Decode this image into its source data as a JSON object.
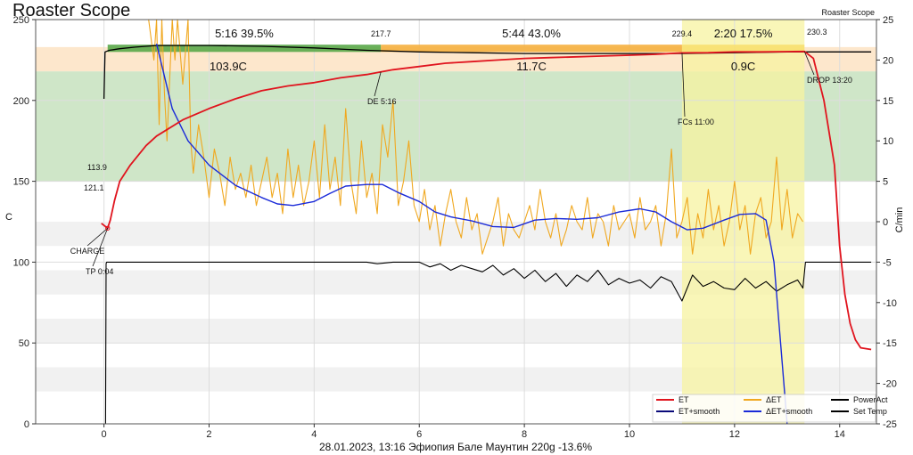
{
  "chart_data": {
    "type": "line",
    "title": "Roaster Scope",
    "watermark": "Roaster Scope",
    "subtitle": "28.01.2023, 13:16 Эфиопия Бале Маунтин   220g   -13.6%",
    "ylabel_left": "C",
    "ylabel_right": "C/min",
    "xlim": [
      -1.3,
      14.7
    ],
    "ylim_left": [
      0,
      250
    ],
    "ylim_right": [
      -25,
      25
    ],
    "xticks": [
      0,
      2,
      4,
      6,
      8,
      10,
      12,
      14
    ],
    "yticks_left": [
      0,
      50,
      100,
      150,
      200,
      250
    ],
    "yticks_right": [
      -25,
      -20,
      -15,
      -10,
      -5,
      0,
      5,
      10,
      15,
      20,
      25
    ],
    "grid": true,
    "legend_position": "bottom-right",
    "colors": {
      "et": "#e0141e",
      "et_smooth": "#0a0a7a",
      "det": "#f0a820",
      "det_smooth": "#1a2ad8",
      "power": "#000000",
      "settemp": "#000000",
      "phase_dry": "#5aa84a",
      "phase_maillard": "#f5b040",
      "phase_dev": "#f7e070",
      "band_green": "#cfe6c8",
      "band_orange": "#fde7cc",
      "dev_zone": "#f7f3a0"
    },
    "phases": [
      {
        "label": "5:16  39.5%",
        "delta": "103.9C",
        "start": 0.07,
        "end": 5.27
      },
      {
        "label": "5:44  43.0%",
        "delta": "11.7C",
        "start": 5.27,
        "end": 11.0
      },
      {
        "label": "2:20  17.5%",
        "delta": "0.9C",
        "start": 11.0,
        "end": 13.33
      }
    ],
    "phase_temps": [
      "217.7",
      "229.4",
      "230.3"
    ],
    "annotations": [
      {
        "label": "CHARGE",
        "x": 0.07,
        "y": 122
      },
      {
        "label": "TP 0:04",
        "x": 0.07,
        "y": 121
      },
      {
        "label": "DE 5:16",
        "x": 5.27,
        "y": 217.7
      },
      {
        "label": "FCs 11:00",
        "x": 11.0,
        "y": 229.4
      },
      {
        "label": "DROP 13:20",
        "x": 13.33,
        "y": 230.3
      },
      {
        "label": "113.9",
        "x": 0.25,
        "y": 158
      },
      {
        "label": "121.1",
        "x": 0.15,
        "y": 144
      }
    ],
    "legend": [
      {
        "name": "ET",
        "key": "et"
      },
      {
        "name": "ΔET",
        "key": "det"
      },
      {
        "name": "PowerAct",
        "key": "power"
      },
      {
        "name": "ET+smooth",
        "key": "et_smooth"
      },
      {
        "name": "ΔET+smooth",
        "key": "det_smooth"
      },
      {
        "name": "Set Temp",
        "key": "settemp"
      }
    ],
    "series": [
      {
        "name": "ET",
        "axis": "left",
        "x": [
          -0.05,
          0.07,
          0.12,
          0.2,
          0.3,
          0.5,
          0.8,
          1.0,
          1.5,
          2.0,
          2.5,
          3.0,
          3.5,
          4.0,
          4.5,
          5.0,
          5.27,
          5.5,
          6.0,
          6.5,
          7.0,
          7.5,
          8.0,
          8.5,
          9.0,
          9.5,
          10.0,
          10.5,
          11.0,
          11.5,
          12.0,
          12.5,
          13.0,
          13.33,
          13.5,
          13.7,
          13.9,
          14.0,
          14.1,
          14.2,
          14.3,
          14.4,
          14.6
        ],
        "y": [
          124,
          121,
          126,
          138,
          150,
          160,
          172,
          178,
          188,
          195,
          201,
          206,
          209,
          211,
          214,
          216,
          217.7,
          219,
          221,
          223,
          224,
          225,
          226,
          226.5,
          227,
          227.5,
          228,
          228.5,
          229.4,
          229.5,
          230,
          230,
          230.2,
          230.3,
          226,
          200,
          160,
          110,
          80,
          62,
          52,
          47,
          46
        ]
      },
      {
        "name": "ET+smooth",
        "axis": "left",
        "x": [
          -0.05,
          0.07,
          0.12,
          0.2,
          0.3,
          0.5,
          0.8,
          1.0,
          1.5,
          2.0,
          2.5,
          3.0,
          3.5,
          4.0,
          4.5,
          5.0,
          5.27,
          5.5,
          6.0,
          6.5,
          7.0,
          7.5,
          8.0,
          8.5,
          9.0,
          9.5,
          10.0,
          10.5,
          11.0,
          11.5,
          12.0,
          12.5,
          13.0,
          13.33
        ],
        "y": [
          124,
          121,
          126,
          138,
          150,
          160,
          172,
          178,
          188,
          195,
          201,
          206,
          209,
          211,
          214,
          216,
          217.7,
          219,
          221,
          223,
          224,
          225,
          226,
          226.5,
          227,
          227.5,
          228,
          228.5,
          229.4,
          229.5,
          230,
          230,
          230.2,
          230.3
        ]
      },
      {
        "name": "ΔET+smooth",
        "axis": "right",
        "x": [
          1.0,
          1.3,
          1.6,
          2.0,
          2.5,
          3.0,
          3.3,
          3.6,
          4.0,
          4.3,
          4.6,
          5.0,
          5.3,
          5.6,
          6.0,
          6.3,
          6.6,
          7.0,
          7.4,
          7.8,
          8.2,
          8.6,
          9.0,
          9.4,
          9.8,
          10.2,
          10.5,
          10.8,
          11.1,
          11.4,
          11.8,
          12.1,
          12.4,
          12.6,
          12.75,
          12.85,
          12.95,
          13.0
        ],
        "y": [
          22,
          14,
          10,
          7,
          4.5,
          3,
          2.2,
          2,
          2.5,
          3.5,
          4.4,
          4.6,
          4.6,
          3.6,
          2.5,
          1.2,
          0.6,
          0.1,
          -0.6,
          -0.7,
          0.2,
          0.4,
          0.3,
          0.5,
          1.2,
          1.6,
          1.2,
          0,
          -1,
          -0.8,
          0.2,
          0.9,
          1,
          0.2,
          -5,
          -13,
          -21,
          -25
        ]
      },
      {
        "name": "ΔET",
        "axis": "right",
        "x": [
          0.85,
          0.95,
          1.0,
          1.05,
          1.1,
          1.15,
          1.2,
          1.3,
          1.35,
          1.4,
          1.5,
          1.6,
          1.65,
          1.7,
          1.8,
          1.9,
          2.0,
          2.1,
          2.2,
          2.3,
          2.4,
          2.5,
          2.6,
          2.7,
          2.8,
          2.9,
          3.0,
          3.1,
          3.2,
          3.3,
          3.4,
          3.5,
          3.6,
          3.7,
          3.8,
          3.9,
          4.0,
          4.1,
          4.2,
          4.3,
          4.4,
          4.5,
          4.6,
          4.7,
          4.8,
          4.9,
          5.0,
          5.1,
          5.2,
          5.3,
          5.4,
          5.5,
          5.6,
          5.7,
          5.8,
          5.9,
          6.0,
          6.1,
          6.2,
          6.3,
          6.4,
          6.5,
          6.6,
          6.7,
          6.8,
          6.9,
          7.0,
          7.1,
          7.2,
          7.3,
          7.4,
          7.5,
          7.6,
          7.7,
          7.8,
          7.9,
          8.0,
          8.1,
          8.2,
          8.3,
          8.4,
          8.5,
          8.6,
          8.7,
          8.8,
          8.9,
          9.0,
          9.1,
          9.2,
          9.3,
          9.4,
          9.5,
          9.6,
          9.7,
          9.8,
          9.9,
          10.0,
          10.1,
          10.2,
          10.3,
          10.4,
          10.5,
          10.6,
          10.7,
          10.8,
          10.9,
          11.0,
          11.1,
          11.2,
          11.3,
          11.4,
          11.5,
          11.6,
          11.7,
          11.8,
          11.9,
          12.0,
          12.1,
          12.2,
          12.3,
          12.4,
          12.5,
          12.6,
          12.7,
          12.8,
          12.9,
          13.0,
          13.1,
          13.2,
          13.3
        ],
        "y": [
          25,
          20,
          25,
          12,
          25,
          16,
          10,
          25,
          20,
          25,
          17,
          25,
          10,
          6,
          12,
          8,
          3,
          9,
          6,
          2,
          8,
          4,
          6,
          3,
          7,
          2,
          5,
          8,
          3,
          6,
          1,
          9,
          3,
          7,
          2,
          5,
          10,
          3,
          12,
          4,
          8,
          2,
          14,
          5,
          1,
          10,
          3,
          6,
          1,
          12,
          8,
          15,
          2,
          5,
          10,
          2,
          0,
          4,
          -1,
          2,
          -3,
          1,
          4,
          0,
          -2,
          3,
          -1,
          1,
          -4,
          -2,
          0,
          3,
          -3,
          1,
          -1,
          -2,
          0,
          2,
          -1,
          4,
          0,
          -2,
          1,
          -3,
          -1,
          2,
          0,
          -1,
          3,
          -2,
          1,
          0,
          -3,
          2,
          -1,
          0,
          1,
          -2,
          3,
          -1,
          0,
          2,
          -3,
          1,
          9,
          -2,
          0,
          3,
          -4,
          1,
          -2,
          4,
          -1,
          2,
          -3,
          0,
          5,
          -1,
          2,
          -4,
          1,
          3,
          -2,
          0,
          8,
          -1,
          4,
          -2,
          1,
          0
        ]
      },
      {
        "name": "PowerAct",
        "axis": "left",
        "x": [
          0.0,
          0.03,
          0.04,
          0.05,
          0.5,
          1.0,
          2.0,
          3.0,
          4.0,
          5.0,
          5.2,
          5.5,
          6.0,
          6.2,
          6.4,
          6.6,
          6.8,
          7.0,
          7.2,
          7.4,
          7.6,
          7.8,
          8.0,
          8.2,
          8.4,
          8.6,
          8.8,
          9.0,
          9.2,
          9.4,
          9.6,
          9.8,
          10.0,
          10.2,
          10.4,
          10.6,
          10.8,
          11.0,
          11.2,
          11.4,
          11.6,
          11.8,
          12.0,
          12.2,
          12.4,
          12.6,
          12.8,
          13.0,
          13.2,
          13.3,
          13.35,
          13.5,
          14.0,
          14.6
        ],
        "y": [
          0,
          0,
          99,
          100,
          100,
          100,
          100,
          100,
          100,
          100,
          99,
          100,
          100,
          97,
          99,
          95,
          98,
          96,
          94,
          98,
          92,
          96,
          90,
          95,
          88,
          93,
          85,
          92,
          88,
          95,
          86,
          90,
          87,
          89,
          84,
          91,
          88,
          76,
          92,
          85,
          88,
          84,
          83,
          90,
          84,
          88,
          82,
          86,
          89,
          84,
          100,
          100,
          100,
          100
        ]
      },
      {
        "name": "Set Temp",
        "axis": "left",
        "x": [
          0.0,
          0.02,
          0.1,
          0.3,
          0.6,
          1.0,
          1.5,
          2.0,
          3.0,
          4.0,
          5.0,
          6.0,
          7.0,
          8.0,
          9.0,
          10.0,
          11.0,
          12.0,
          13.0,
          14.0,
          14.6
        ],
        "y": [
          201,
          230,
          231,
          232,
          233,
          234,
          234,
          234,
          233.5,
          232.5,
          231,
          230,
          229.5,
          229,
          229,
          229,
          229,
          229.5,
          230,
          230,
          230
        ]
      }
    ]
  }
}
